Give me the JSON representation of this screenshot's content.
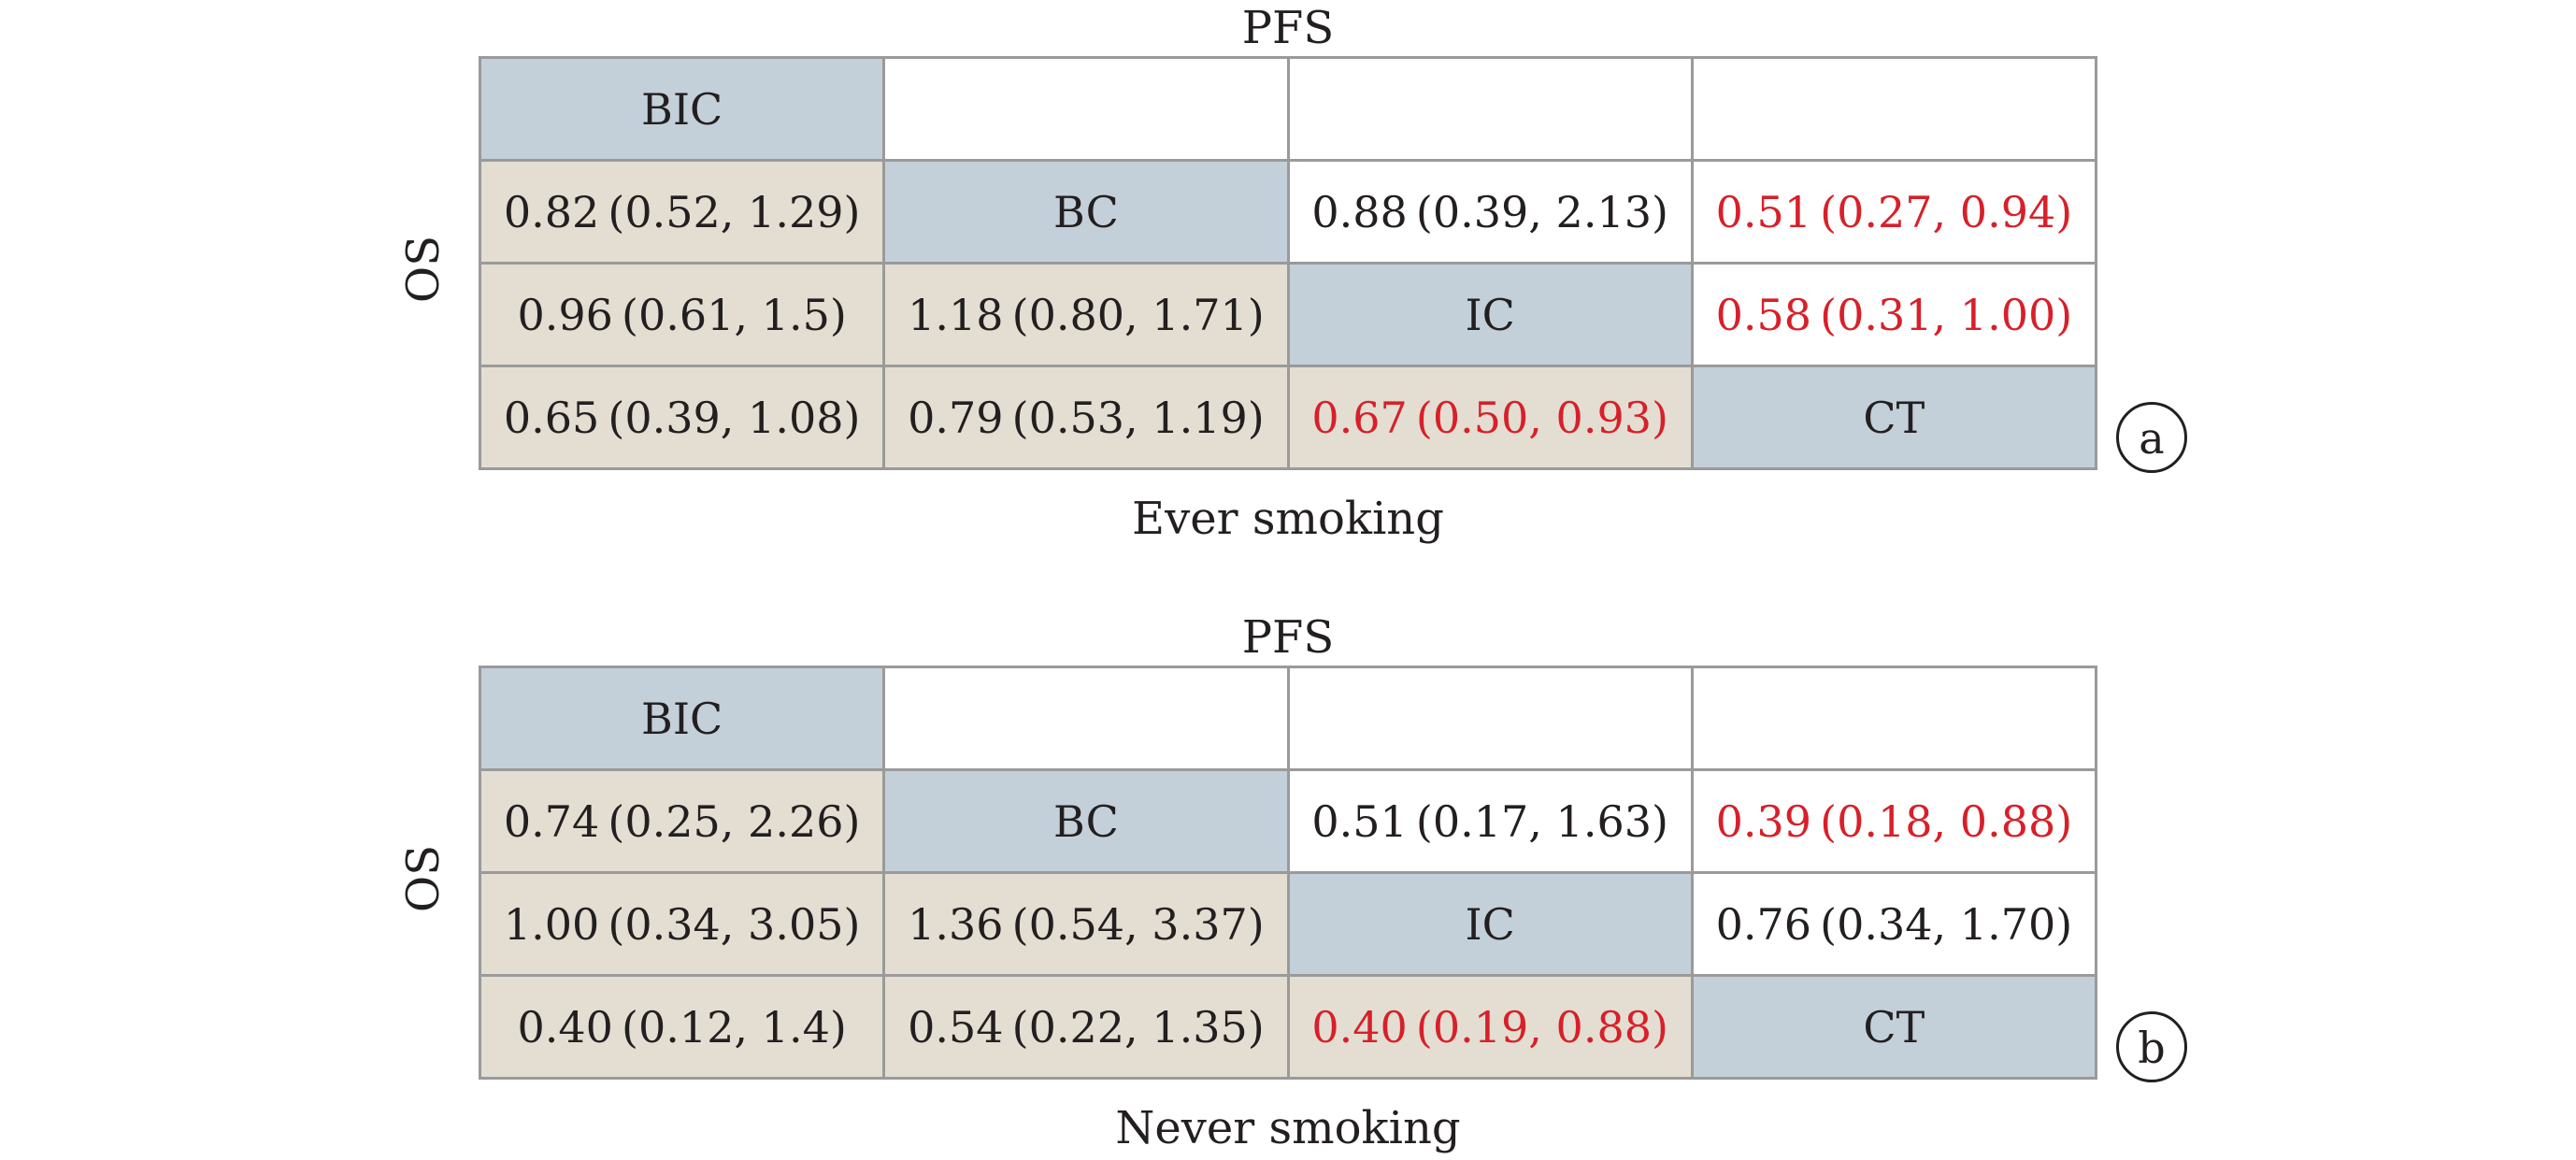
{
  "chart_data": [
    {
      "type": "table",
      "panel_label": "a",
      "top_label": "PFS",
      "side_label": "OS",
      "bottom_label": "Ever smoking",
      "rows": [
        [
          "BIC",
          "",
          "",
          ""
        ],
        [
          "0.82 (0.52, 1.29)",
          "BC",
          "0.88 (0.39, 2.13)",
          "0.51 (0.27, 0.94)"
        ],
        [
          "0.96 (0.61, 1.5)",
          "1.18 (0.80, 1.71)",
          "IC",
          "0.58 (0.31, 1.00)"
        ],
        [
          "0.65 (0.39, 1.08)",
          "0.79 (0.53, 1.19)",
          "0.67 (0.50, 0.93)",
          "CT"
        ]
      ],
      "significant_cells": [
        [
          1,
          3
        ],
        [
          2,
          3
        ],
        [
          3,
          2
        ]
      ]
    },
    {
      "type": "table",
      "panel_label": "b",
      "top_label": "PFS",
      "side_label": "OS",
      "bottom_label": "Never smoking",
      "rows": [
        [
          "BIC",
          "",
          "",
          ""
        ],
        [
          "0.74 (0.25, 2.26)",
          "BC",
          "0.51 (0.17, 1.63)",
          "0.39 (0.18, 0.88)"
        ],
        [
          "1.00 (0.34, 3.05)",
          "1.36 (0.54, 3.37)",
          "IC",
          "0.76 (0.34, 1.70)"
        ],
        [
          "0.40 (0.12, 1.4)",
          "0.54 (0.22, 1.35)",
          "0.40 (0.19, 0.88)",
          "CT"
        ]
      ],
      "significant_cells": [
        [
          1,
          3
        ],
        [
          3,
          2
        ]
      ]
    }
  ],
  "colors": {
    "diagonal_fill": "#c3d0d9",
    "lower_fill": "#e3ded1",
    "upper_fill": "#ffffff",
    "significant_text": "#d7202a",
    "text": "#231f20",
    "grid": "#9a9a9a"
  }
}
